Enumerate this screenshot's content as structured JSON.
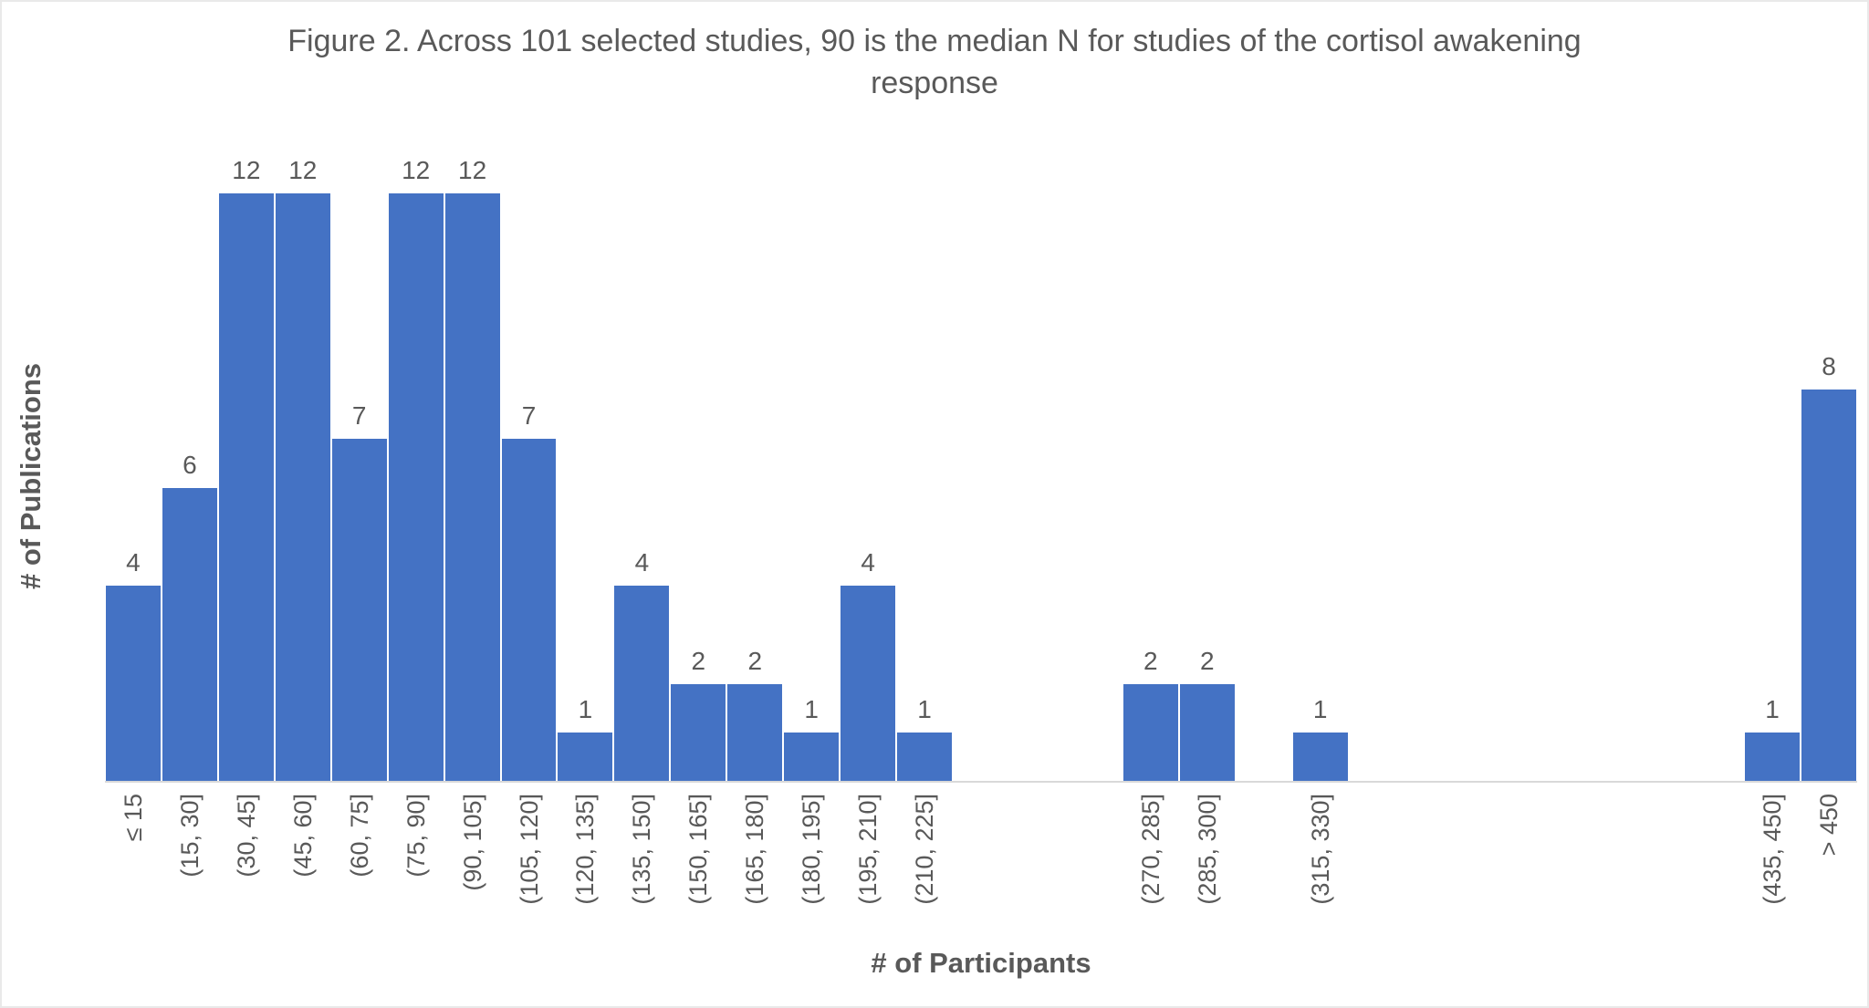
{
  "chart_data": {
    "type": "bar",
    "title": "Figure 2. Across 101 selected studies, 90 is the median N for studies of the cortisol awakening response",
    "xlabel": "# of Participants",
    "ylabel": "# of Publications",
    "bar_color": "#4472C4",
    "text_color": "#595959",
    "axis_line_color": "#D9D9D9",
    "ylim": [
      0,
      12
    ],
    "grid": false,
    "legend": false,
    "data_labels": true,
    "categories": [
      "≤ 15",
      "(15, 30]",
      "(30, 45]",
      "(45, 60]",
      "(60, 75]",
      "(75, 90]",
      "(90, 105]",
      "(105, 120]",
      "(120, 135]",
      "(135, 150]",
      "(150, 165]",
      "(165, 180]",
      "(180, 195]",
      "(195, 210]",
      "(210, 225]",
      "",
      "",
      "",
      "(270, 285]",
      "(285, 300]",
      "",
      "(315, 330]",
      "",
      "",
      "",
      "",
      "",
      "",
      "",
      "(435, 450]",
      "> 450"
    ],
    "values": [
      4,
      6,
      12,
      12,
      7,
      12,
      12,
      7,
      1,
      4,
      2,
      2,
      1,
      4,
      1,
      0,
      0,
      0,
      2,
      2,
      0,
      1,
      0,
      0,
      0,
      0,
      0,
      0,
      0,
      1,
      8
    ]
  }
}
